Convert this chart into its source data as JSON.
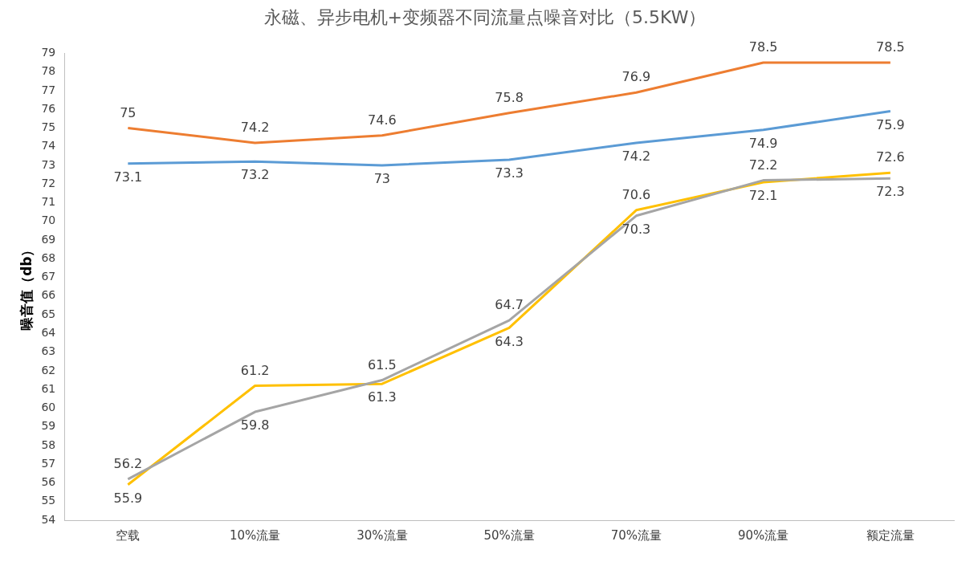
{
  "chart_data": {
    "type": "line",
    "title": "永磁、异步电机+变频器不同流量点噪音对比（5.5KW）",
    "ylabel": "噪音值（db）",
    "categories": [
      "空载",
      "10%流量",
      "30%流量",
      "50%流量",
      "70%流量",
      "90%流量",
      "额定流量"
    ],
    "series": [
      {
        "color": "#ed7d31",
        "values": [
          75,
          74.2,
          74.6,
          75.8,
          76.9,
          78.5,
          78.5
        ]
      },
      {
        "color": "#5b9bd5",
        "values": [
          73.1,
          73.2,
          73,
          73.3,
          74.2,
          74.9,
          75.9
        ]
      },
      {
        "color": "#a5a5a5",
        "values": [
          56.2,
          59.8,
          61.5,
          64.7,
          70.3,
          72.2,
          72.3
        ]
      },
      {
        "color": "#ffc000",
        "values": [
          55.9,
          61.2,
          61.3,
          64.3,
          70.6,
          72.1,
          72.6
        ]
      }
    ],
    "ylim": [
      54,
      79
    ],
    "yticks": [
      54,
      55,
      56,
      57,
      58,
      59,
      60,
      61,
      62,
      63,
      64,
      65,
      66,
      67,
      68,
      69,
      70,
      71,
      72,
      73,
      74,
      75,
      76,
      77,
      78,
      79
    ],
    "grid": false,
    "legend": false,
    "marker": "none",
    "data_labels": true
  }
}
